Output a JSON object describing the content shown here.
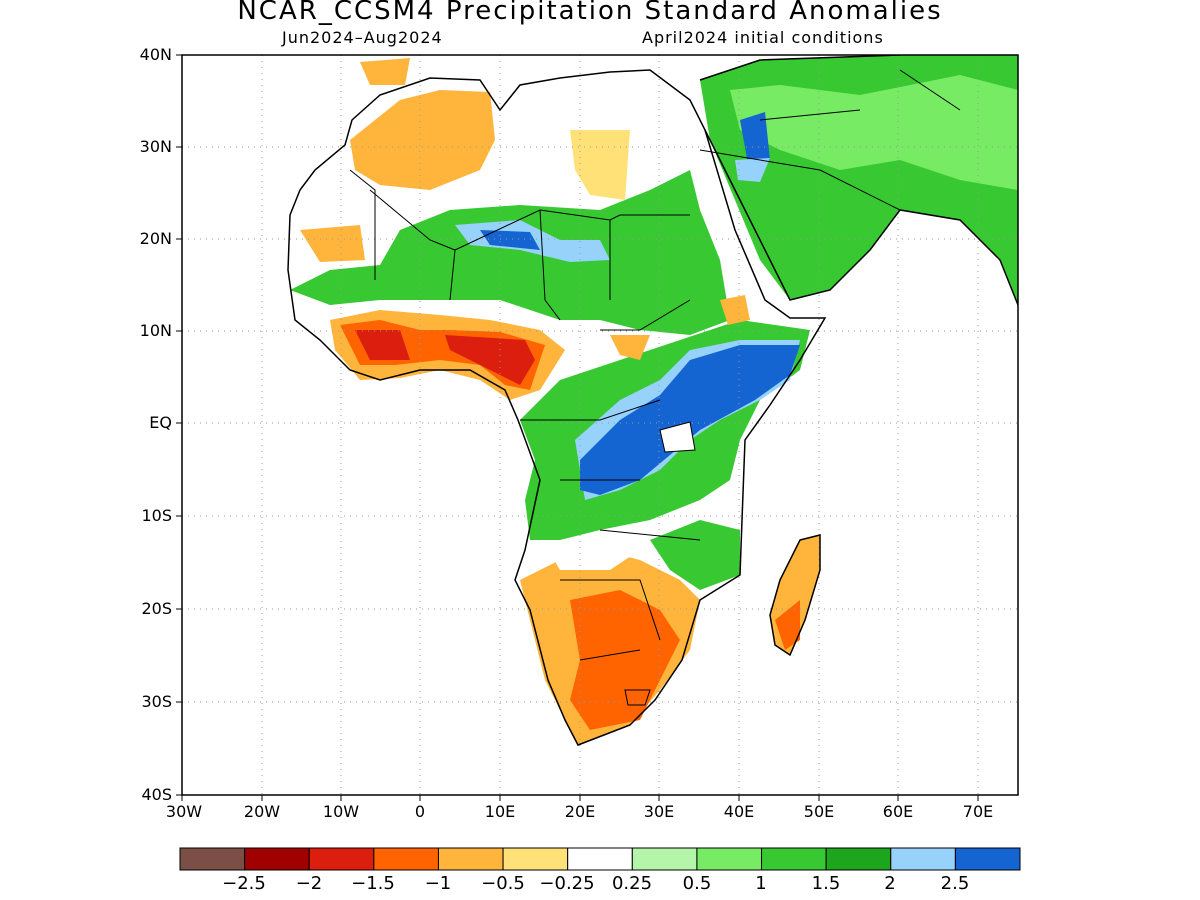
{
  "title": "NCAR_CCSM4 Precipitation Standard Anomalies",
  "subtitle_left": "Jun2024–Aug2024",
  "subtitle_right": "April2024 initial conditions",
  "lat_ticks": [
    "40N",
    "30N",
    "20N",
    "10N",
    "EQ",
    "10S",
    "20S",
    "30S",
    "40S"
  ],
  "lon_ticks": [
    "30W",
    "20W",
    "10W",
    "0",
    "10E",
    "20E",
    "30E",
    "40E",
    "50E",
    "60E",
    "70E"
  ],
  "map_extent": {
    "lon": [
      -30,
      75
    ],
    "lat": [
      -40,
      40
    ]
  },
  "colorbar": {
    "colors": [
      "#7b4f45",
      "#a00000",
      "#dc1e0f",
      "#ff6400",
      "#ffb43c",
      "#ffe178",
      "#ffffff",
      "#b4f5aa",
      "#78eb64",
      "#37c832",
      "#1ea51e",
      "#96d2fa",
      "#1464d2"
    ],
    "labels": [
      "−2.5",
      "−2",
      "−1.5",
      "−1",
      "−0.5",
      "−0.25",
      "0.25",
      "0.5",
      "1",
      "1.5",
      "2",
      "2.5"
    ]
  }
}
